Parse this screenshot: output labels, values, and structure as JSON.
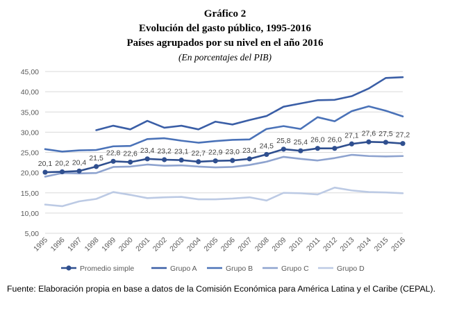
{
  "heading": {
    "figure_label": "Gráfico 2",
    "title": "Evolución del gasto público, 1995-2016",
    "subtitle": "Países agrupados por su nivel en el año 2016",
    "units": "(En porcentajes del PIB)"
  },
  "chart_data": {
    "type": "line",
    "x": [
      "1995",
      "1996",
      "1997",
      "1998",
      "1999",
      "2000",
      "2001",
      "2002",
      "2003",
      "2004",
      "2005",
      "2006",
      "2007",
      "2008",
      "2009",
      "2010",
      "2011",
      "2012",
      "2013",
      "2014",
      "2015",
      "2016"
    ],
    "ylim": [
      5,
      45
    ],
    "yticks": [
      "5,00",
      "10,00",
      "15,00",
      "20,00",
      "25,00",
      "30,00",
      "35,00",
      "40,00",
      "45,00"
    ],
    "ytick_values": [
      5,
      10,
      15,
      20,
      25,
      30,
      35,
      40,
      45
    ],
    "grid": "horizontal",
    "legend_position": "bottom",
    "series": [
      {
        "name": "Promedio simple",
        "color": "#2f4f8f",
        "markers": true,
        "labels": [
          "20,1",
          "20,2",
          "20,4",
          "21,5",
          "22,8",
          "22,6",
          "23,4",
          "23,2",
          "23,1",
          "22,7",
          "22,9",
          "23,0",
          "23,4",
          "24,5",
          "25,8",
          "25,4",
          "26,0",
          "26,0",
          "27,1",
          "27,6",
          "27,5",
          "27,2"
        ],
        "values": [
          20.1,
          20.2,
          20.4,
          21.5,
          22.8,
          22.6,
          23.4,
          23.2,
          23.1,
          22.7,
          22.9,
          23.0,
          23.4,
          24.5,
          25.8,
          25.4,
          26.0,
          26.0,
          27.1,
          27.6,
          27.5,
          27.2
        ]
      },
      {
        "name": "Grupo A",
        "color": "#3a5ea6",
        "markers": false,
        "values": [
          null,
          null,
          null,
          30.5,
          31.6,
          30.7,
          32.8,
          31.1,
          31.6,
          30.7,
          32.6,
          31.9,
          33.0,
          34.0,
          36.3,
          37.1,
          37.9,
          38.0,
          38.9,
          40.8,
          43.4,
          43.6
        ]
      },
      {
        "name": "Grupo B",
        "color": "#4a72b8",
        "markers": false,
        "values": [
          25.8,
          25.2,
          25.5,
          25.6,
          26.5,
          26.6,
          28.3,
          28.5,
          27.9,
          27.4,
          27.8,
          28.1,
          28.2,
          30.8,
          31.5,
          30.8,
          33.7,
          32.7,
          35.2,
          36.4,
          35.3,
          33.9
        ]
      },
      {
        "name": "Grupo C",
        "color": "#8ea3cf",
        "markers": false,
        "values": [
          19.0,
          19.9,
          19.8,
          19.9,
          21.4,
          21.5,
          22.0,
          21.7,
          21.8,
          21.5,
          21.3,
          21.4,
          21.9,
          22.7,
          23.9,
          23.4,
          23.0,
          23.6,
          24.4,
          24.1,
          24.0,
          24.1
        ]
      },
      {
        "name": "Grupo D",
        "color": "#bccae4",
        "markers": false,
        "values": [
          12.1,
          11.7,
          12.9,
          13.5,
          15.2,
          14.5,
          13.7,
          13.9,
          14.0,
          13.4,
          13.4,
          13.6,
          13.9,
          13.1,
          15.0,
          14.9,
          14.6,
          16.3,
          15.6,
          15.2,
          15.1,
          14.9
        ]
      }
    ]
  },
  "source": "Fuente: Elaboración propia en base a datos de la Comisión Económica para América Latina y el Caribe (CEPAL)."
}
